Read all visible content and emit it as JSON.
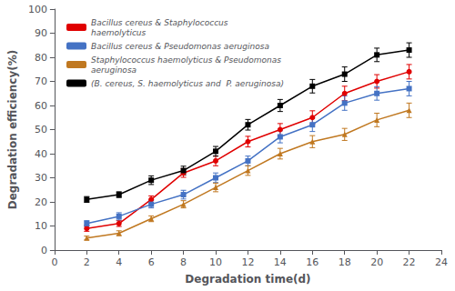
{
  "chart_data": {
    "type": "line",
    "xlabel": "Degradation time(d)",
    "ylabel": "Degradation efficiency(%)",
    "x": [
      2,
      4,
      6,
      8,
      10,
      12,
      14,
      16,
      18,
      20,
      22
    ],
    "series": [
      {
        "name": "Bacillus cereus & Staphylococcus\nhaemolyticus",
        "color": "#e00000",
        "marker": "circle",
        "values": [
          9,
          11,
          21,
          32,
          37,
          45,
          50,
          55,
          65,
          70,
          74
        ],
        "errors": [
          1.2,
          1.2,
          1.5,
          1.8,
          2.0,
          2.2,
          2.5,
          2.8,
          3.0,
          2.8,
          3.0
        ]
      },
      {
        "name": "Bacillus cereus & Pseudomonas aeruginosa",
        "color": "#4472c4",
        "marker": "square",
        "values": [
          11,
          14,
          19,
          23,
          30,
          37,
          47,
          52,
          61,
          65,
          67
        ],
        "errors": [
          1.2,
          1.5,
          1.5,
          1.8,
          2.0,
          2.0,
          2.5,
          2.8,
          3.0,
          2.8,
          3.0
        ]
      },
      {
        "name": "Staphylococcus haemolyticus & Pseudomonas\naeruginosa",
        "color": "#c07820",
        "marker": "triangle",
        "values": [
          5,
          7,
          13,
          19,
          26,
          33,
          40,
          45,
          48,
          54,
          58
        ],
        "errors": [
          0.8,
          1.0,
          1.2,
          1.5,
          1.8,
          2.0,
          2.2,
          2.5,
          2.5,
          2.8,
          3.0
        ]
      },
      {
        "name": "(B. cereus, S. haemolyticus and  P. aeruginosa)",
        "color": "#000000",
        "marker": "square",
        "values": [
          21,
          23,
          29,
          33,
          41,
          52,
          60,
          68,
          73,
          81,
          83
        ],
        "errors": [
          1.2,
          1.2,
          1.8,
          1.8,
          2.0,
          2.2,
          2.5,
          2.8,
          3.0,
          2.8,
          3.0
        ]
      }
    ],
    "xlim": [
      0,
      24
    ],
    "ylim": [
      0,
      100
    ],
    "xticks": [
      0,
      2,
      4,
      6,
      8,
      10,
      12,
      14,
      16,
      18,
      20,
      22,
      24
    ],
    "yticks": [
      0,
      10,
      20,
      30,
      40,
      50,
      60,
      70,
      80,
      90,
      100
    ],
    "grid": false,
    "legend": "upper left"
  }
}
